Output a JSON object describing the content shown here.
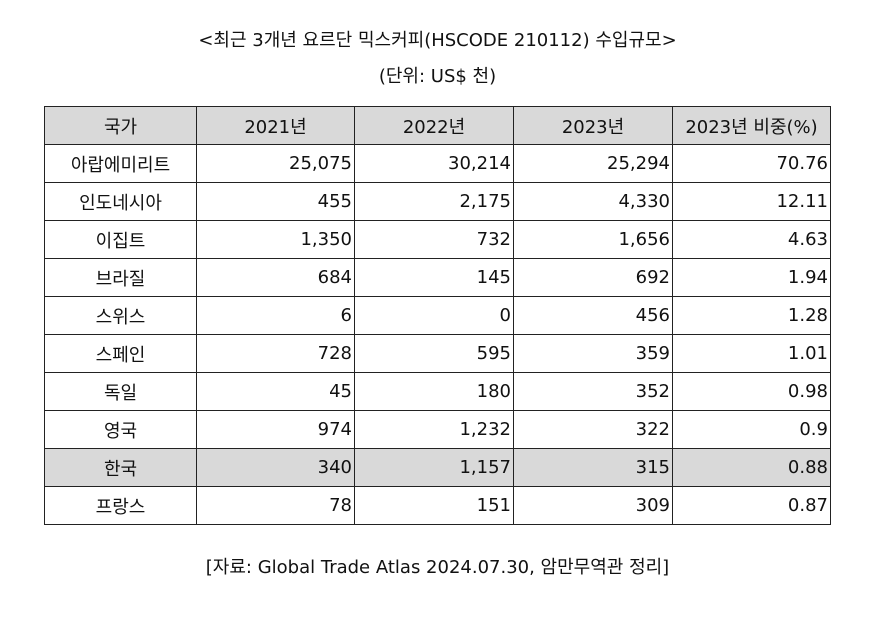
{
  "title": "<최근 3개년 요르단 믹스커피(HSCODE 210112) 수입규모>",
  "unit": "(단위: US$ 천)",
  "table": {
    "headers": [
      "국가",
      "2021년",
      "2022년",
      "2023년",
      "2023년 비중(%)"
    ],
    "rows": [
      [
        "아랍에미리트",
        "25,075",
        "30,214",
        "25,294",
        "70.76"
      ],
      [
        "인도네시아",
        "455",
        "2,175",
        "4,330",
        "12.11"
      ],
      [
        "이집트",
        "1,350",
        "732",
        "1,656",
        "4.63"
      ],
      [
        "브라질",
        "684",
        "145",
        "692",
        "1.94"
      ],
      [
        "스위스",
        "6",
        "0",
        "456",
        "1.28"
      ],
      [
        "스페인",
        "728",
        "595",
        "359",
        "1.01"
      ],
      [
        "독일",
        "45",
        "180",
        "352",
        "0.98"
      ],
      [
        "영국",
        "974",
        "1,232",
        "322",
        "0.9"
      ],
      [
        "한국",
        "340",
        "1,157",
        "315",
        "0.88"
      ],
      [
        "프랑스",
        "78",
        "151",
        "309",
        "0.87"
      ]
    ],
    "highlight_row_index": 8,
    "highlight_color": "#d9d9d9"
  },
  "source": "[자료: Global Trade Atlas 2024.07.30, 암만무역관 정리]"
}
